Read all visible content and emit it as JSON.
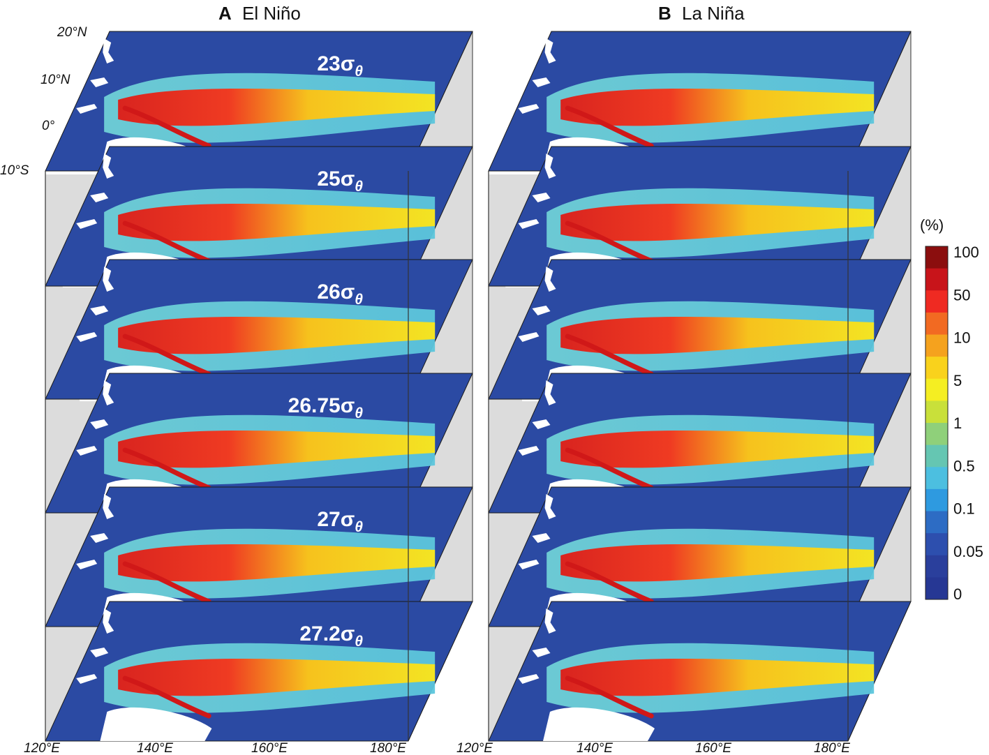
{
  "panels": [
    {
      "letter": "A",
      "title": "El Niño",
      "levels": [
        {
          "base": "23",
          "sub": "θ"
        },
        {
          "base": "25",
          "sub": "θ"
        },
        {
          "base": "26",
          "sub": "θ"
        },
        {
          "base": "26.75",
          "sub": "θ"
        },
        {
          "base": "27",
          "sub": "θ"
        },
        {
          "base": "27.2",
          "sub": "θ"
        }
      ]
    },
    {
      "letter": "B",
      "title": "La Niña",
      "levels": []
    }
  ],
  "sigma_symbol": "σ",
  "lat_labels": [
    "20°N",
    "10°N",
    "0°",
    "10°S"
  ],
  "lon_labels_a": [
    "120°E",
    "140°E",
    "160°E",
    "180°E"
  ],
  "lon_labels_b": [
    "120°E",
    "140°E",
    "160°E",
    "180°E"
  ],
  "colorbar": {
    "unit": "(%)",
    "ticks": [
      "100",
      "50",
      "10",
      "5",
      "1",
      "0.5",
      "0.1",
      "0.05",
      "0"
    ],
    "colors": [
      "#8b0e0e",
      "#c8141a",
      "#ef2a22",
      "#f26a22",
      "#f5a21e",
      "#f9d21c",
      "#f5ee22",
      "#c9e03a",
      "#8fd07a",
      "#65c6b2",
      "#4cbfe0",
      "#2e9ae0",
      "#2d6cc4",
      "#2d4fae",
      "#2a3f9c",
      "#263794"
    ]
  },
  "colors": {
    "ocean": "#2b4aa3",
    "side": "#dcdcdc",
    "land": "#ffffff"
  }
}
